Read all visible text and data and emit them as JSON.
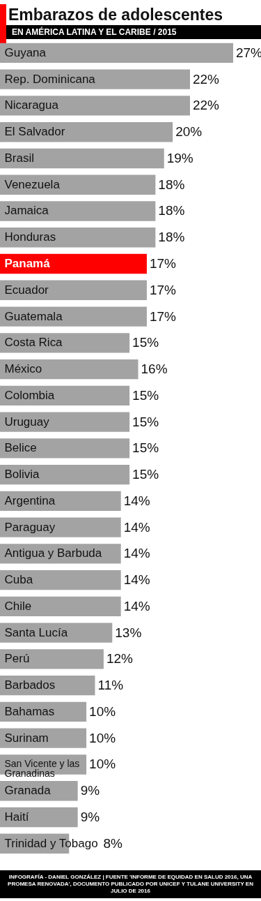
{
  "chart_data": {
    "type": "bar",
    "orientation": "horizontal",
    "title": "Embarazos de adolescentes",
    "subtitle": "EN AMÉRICA LATINA Y EL CARIBE / 2015",
    "categories": [
      "Guyana",
      "Rep. Dominicana",
      "Nicaragua",
      "El Salvador",
      "Brasil",
      "Venezuela",
      "Jamaica",
      "Honduras",
      "Panamá",
      "Ecuador",
      "Guatemala",
      "Costa Rica",
      "México",
      "Colombia",
      "Uruguay",
      "Belice",
      "Bolivia",
      "Argentina",
      "Paraguay",
      "Antigua y Barbuda",
      "Cuba",
      "Chile",
      "Santa Lucía",
      "Perú",
      "Barbados",
      "Bahamas",
      "Surinam",
      "San Vicente y las Granadinas",
      "Granada",
      "Haití",
      "Trinidad y Tobago"
    ],
    "values": [
      27,
      22,
      22,
      20,
      19,
      18,
      18,
      18,
      17,
      17,
      17,
      15,
      16,
      15,
      15,
      15,
      15,
      14,
      14,
      14,
      14,
      14,
      13,
      12,
      11,
      10,
      10,
      10,
      9,
      9,
      8
    ],
    "colors": [
      "#a3a3a3",
      "#a3a3a3",
      "#a3a3a3",
      "#a3a3a3",
      "#a3a3a3",
      "#a3a3a3",
      "#a3a3a3",
      "#a3a3a3",
      "#ff0000",
      "#a3a3a3",
      "#a3a3a3",
      "#a3a3a3",
      "#a3a3a3",
      "#a3a3a3",
      "#a3a3a3",
      "#a3a3a3",
      "#a3a3a3",
      "#a3a3a3",
      "#a3a3a3",
      "#a3a3a3",
      "#a3a3a3",
      "#a3a3a3",
      "#a3a3a3",
      "#a3a3a3",
      "#a3a3a3",
      "#a3a3a3",
      "#a3a3a3",
      "#a3a3a3",
      "#a3a3a3",
      "#a3a3a3",
      "#a3a3a3"
    ],
    "value_labels": [
      "27%",
      "22%",
      "22%",
      "20%",
      "19%",
      "18%",
      "18%",
      "18%",
      "17%",
      "17%",
      "17%",
      "15%",
      "16%",
      "15%",
      "15%",
      "15%",
      "15%",
      "14%",
      "14%",
      "14%",
      "14%",
      "14%",
      "13%",
      "12%",
      "11%",
      "10%",
      "10%",
      "10%",
      "9%",
      "9%",
      "8%"
    ],
    "annotations": [
      "INFOGRAFÍA - DANIEL GONZÁLEZ | FUENTE 'INFORME DE EQUIDAD EN SALUD 2016, UNA PROMESA RENOVADA', DOCUMENTO PUBLICADO POR UNICEF Y TULANE UNIVERSITY EN JULIO DE 2016"
    ]
  }
}
